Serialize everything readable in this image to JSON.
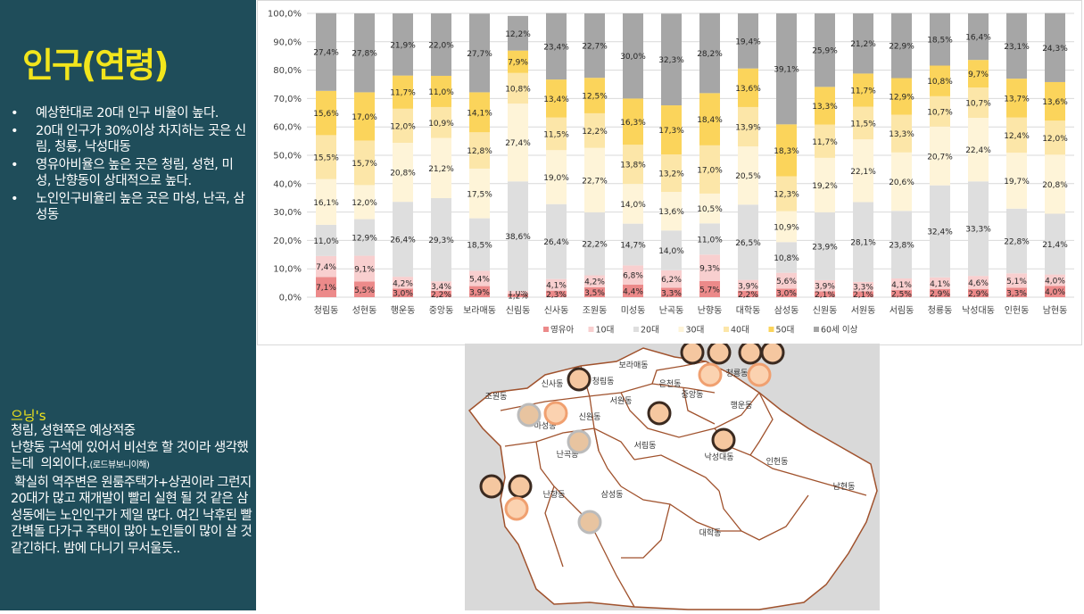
{
  "slide": {
    "title": "인구(연령)",
    "bullets": [
      "예상한대로 20대 인구 비율이 높다.",
      "20대 인구가 30%이상 차지하는 곳은 신림, 청룡, 낙성대동",
      "영유아비율으 높은 곳은 청림, 성현, 미성, 난향동이 상대적으로 높다.",
      "노인인구비율리 높은 곳은 마성, 난곡, 삼성동"
    ],
    "comment_title": "으닝's",
    "comment_lines": [
      "청림, 성현쪽은 예상적중",
      "난향동 구석에 있어서 비선호 할 것이라 생각했는데  의외이다.",
      "(로드뷰보니이해)",
      " 확실히 역주변은 원룸주택가+상권이라 그런지 20대가 많고 재개발이 빨리 실현 될 것 같은 삼성동에는 노인인구가 제일 많다. 여긴 낙후된 빨간벽돌 다가구 주택이 많아 노인들이 많이 살 것 같긴하다. 밤에 다니기 무서울듯.."
    ]
  },
  "chart_data": {
    "type": "bar",
    "stacked": "percent",
    "ylim": [
      0,
      100
    ],
    "yticks": [
      "0,0%",
      "10,0%",
      "20,0%",
      "30,0%",
      "40,0%",
      "50,0%",
      "60,0%",
      "70,0%",
      "80,0%",
      "90,0%",
      "100,0%"
    ],
    "categories": [
      "청림동",
      "성현동",
      "행운동",
      "중앙동",
      "보라매동",
      "신림동",
      "신사동",
      "조원동",
      "미성동",
      "난곡동",
      "난향동",
      "대학동",
      "삼성동",
      "신원동",
      "서원동",
      "서림동",
      "청룡동",
      "낙성대동",
      "인헌동",
      "남현동"
    ],
    "series": [
      {
        "name": "영유아",
        "color": "#ec8a8a",
        "values": [
          7.1,
          5.5,
          3.0,
          2.2,
          3.9,
          1.2,
          2.3,
          3.5,
          4.4,
          3.3,
          5.7,
          2.2,
          3.0,
          2.1,
          2.1,
          2.5,
          2.9,
          2.9,
          3.3,
          4.0
        ],
        "labels": [
          "7,1%",
          "5,5%",
          "3,0%",
          "2,2%",
          "3,9%",
          "1,2%",
          "2,3%",
          "3,5%",
          "4,4%",
          "3,3%",
          "5,7%",
          "2,2%",
          "3,0%",
          "2,1%",
          "2,1%",
          "2,5%",
          "2,9%",
          "2,9%",
          "3,3%",
          "4,0%"
        ]
      },
      {
        "name": "10대",
        "color": "#f8cfcf",
        "values": [
          7.4,
          9.1,
          4.2,
          3.4,
          5.4,
          1.0,
          4.1,
          4.2,
          6.8,
          6.2,
          9.3,
          3.9,
          5.6,
          3.9,
          3.3,
          4.1,
          4.1,
          4.6,
          5.1,
          4.0
        ],
        "labels": [
          "7,4%",
          "9,1%",
          "4,2%",
          "3,4%",
          "5,4%",
          "1,0%",
          "4,1%",
          "4,2%",
          "6,8%",
          "6,2%",
          "9,3%",
          "3,9%",
          "5,6%",
          "3,9%",
          "3,3%",
          "4,1%",
          "4,1%",
          "4,6%",
          "5,1%",
          "4,0%"
        ]
      },
      {
        "name": "20대",
        "color": "#dedede",
        "values": [
          11.0,
          12.9,
          26.4,
          29.3,
          18.5,
          38.6,
          26.4,
          22.2,
          14.7,
          14.0,
          11.0,
          26.5,
          10.8,
          23.9,
          28.1,
          23.8,
          32.4,
          33.3,
          22.8,
          21.4
        ],
        "labels": [
          "11,0%",
          "12,9%",
          "26,4%",
          "29,3%",
          "18,5%",
          "38,6%",
          "26,4%",
          "22,2%",
          "14,7%",
          "14,0%",
          "11,0%",
          "26,5%",
          "10,8%",
          "23,9%",
          "28,1%",
          "23,8%",
          "32,4%",
          "33,3%",
          "22,8%",
          "21,4%"
        ]
      },
      {
        "name": "30대",
        "color": "#fef4d8",
        "values": [
          16.1,
          12.0,
          20.8,
          21.2,
          17.5,
          27.4,
          19.0,
          22.7,
          14.0,
          13.6,
          10.5,
          20.5,
          10.9,
          19.2,
          22.1,
          20.6,
          20.7,
          22.4,
          19.7,
          20.8
        ],
        "labels": [
          "16,1%",
          "12,0%",
          "20,8%",
          "21,2%",
          "17,5%",
          "27,4%",
          "19,0%",
          "22,7%",
          "14,0%",
          "13,6%",
          "10,5%",
          "20,5%",
          "10,9%",
          "19,2%",
          "22,1%",
          "20,6%",
          "20,7%",
          "22,4%",
          "19,7%",
          "20,8%"
        ]
      },
      {
        "name": "40대",
        "color": "#fce6a8",
        "values": [
          15.5,
          15.7,
          12.0,
          10.9,
          12.8,
          10.8,
          11.5,
          12.2,
          13.8,
          13.2,
          17.0,
          13.9,
          12.3,
          11.7,
          11.5,
          13.3,
          10.7,
          10.7,
          12.4,
          12.0
        ],
        "labels": [
          "15,5%",
          "15,7%",
          "12,0%",
          "10,9%",
          "12,8%",
          "10,8%",
          "11,5%",
          "12,2%",
          "13,8%",
          "13,2%",
          "17,0%",
          "13,9%",
          "12,3%",
          "11,7%",
          "11,5%",
          "13,3%",
          "10,7%",
          "10,7%",
          "12,4%",
          "12,0%"
        ]
      },
      {
        "name": "50대",
        "color": "#fbd45b",
        "values": [
          15.6,
          17.0,
          11.7,
          11.0,
          14.1,
          7.9,
          13.4,
          12.5,
          16.3,
          17.3,
          18.4,
          13.6,
          18.3,
          13.3,
          11.7,
          12.9,
          10.8,
          9.7,
          13.7,
          13.6
        ],
        "labels": [
          "15,6%",
          "17,0%",
          "11,7%",
          "11,0%",
          "14,1%",
          "7,9%",
          "13,4%",
          "12,5%",
          "16,3%",
          "17,3%",
          "18,4%",
          "13,6%",
          "18,3%",
          "13,3%",
          "11,7%",
          "12,9%",
          "10,8%",
          "9,7%",
          "13,7%",
          "13,6%"
        ]
      },
      {
        "name": "60세 이상",
        "color": "#a6a6a6",
        "values": [
          27.4,
          27.8,
          21.9,
          22.0,
          27.7,
          12.2,
          23.4,
          22.7,
          30.0,
          32.3,
          28.2,
          19.4,
          39.1,
          25.9,
          21.2,
          22.9,
          18.5,
          16.4,
          23.1,
          24.3
        ],
        "labels": [
          "27,4%",
          "27,8%",
          "21,9%",
          "22,0%",
          "27,7%",
          "12,2%",
          "23,4%",
          "22,7%",
          "30,0%",
          "32,3%",
          "28,2%",
          "19,4%",
          "39,1%",
          "25,9%",
          "21,2%",
          "22,9%",
          "18,5%",
          "16,4%",
          "23,1%",
          "24,3%"
        ]
      }
    ],
    "legend": [
      "영유아",
      "10대",
      "20대",
      "30대",
      "40대",
      "50대",
      "60세 이상"
    ],
    "legend_position": "bottom"
  },
  "map": {
    "labels": [
      "보라매동",
      "신사동",
      "은천동",
      "청림동",
      "조원동",
      "중앙동",
      "청룡동",
      "서원동",
      "행운동",
      "신원동",
      "마성동",
      "서림동",
      "난곡동",
      "낙성대동",
      "인헌동",
      "남현동",
      "난향동",
      "삼성동",
      "대학동"
    ],
    "fill": "#ffffff",
    "border": "#a0522d"
  }
}
